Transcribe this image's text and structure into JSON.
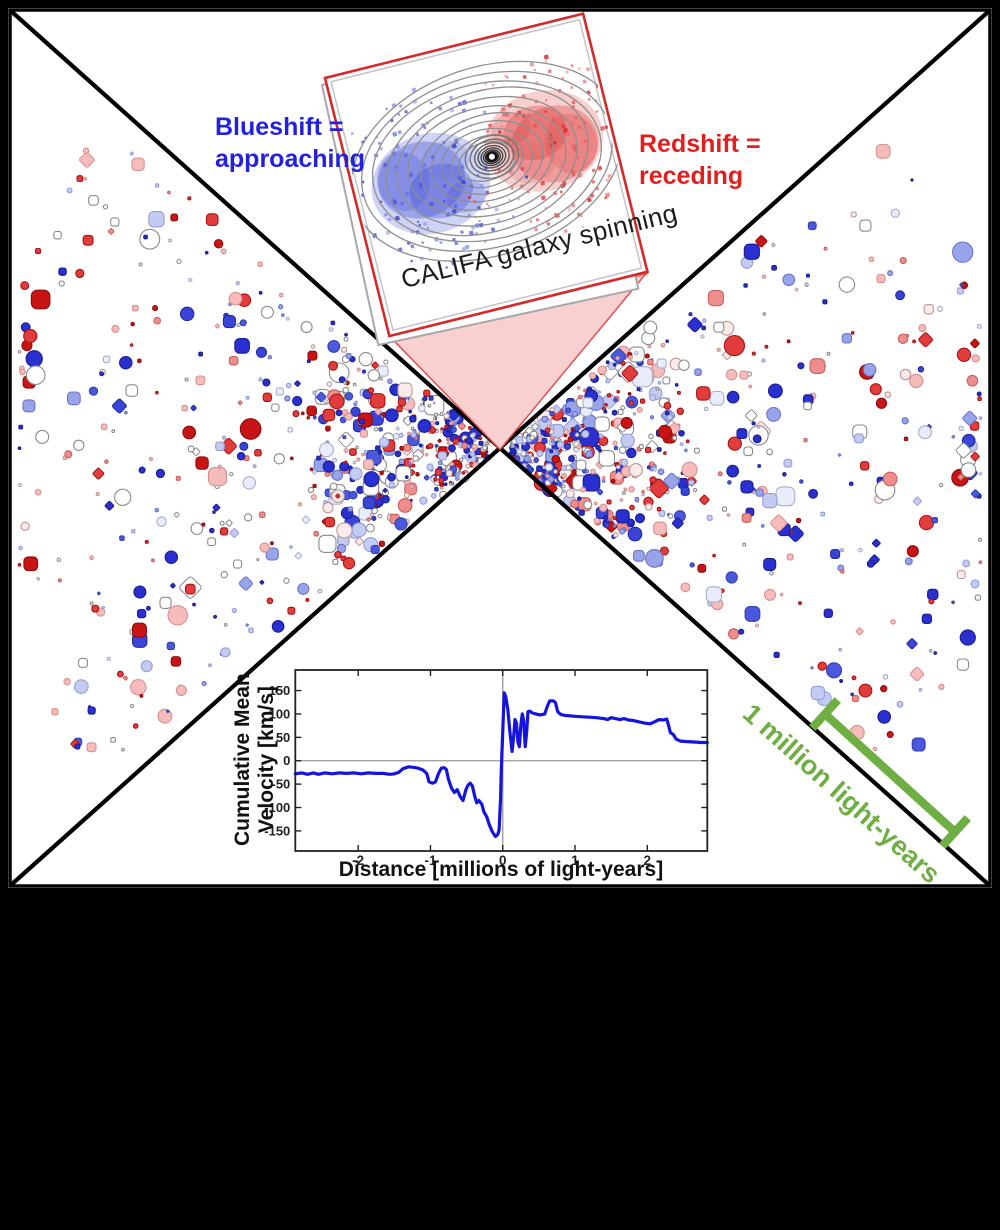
{
  "figure": {
    "background": "#000000",
    "panel_background": "#ffffff",
    "panel_border_color": "#000000",
    "diagonal_color": "#000000"
  },
  "labels": {
    "blueshift_line1": "Blueshift =",
    "blueshift_line2": "approaching",
    "blueshift_color": "#2222dd",
    "redshift_line1": "Redshift =",
    "redshift_line2": "receding",
    "redshift_color": "#e01f1f",
    "inset_caption": "CALIFA galaxy spinning",
    "scalebar_label": "1 million light-years",
    "scalebar_color": "#6fae43"
  },
  "inset": {
    "caption": "CALIFA galaxy spinning",
    "border_color": "#d42a2a",
    "blue_side": "left",
    "red_side": "right",
    "callout_fill": "#f8d0d0",
    "callout_stroke": "#e05050"
  },
  "chart_data": [
    {
      "type": "scatter",
      "title": "",
      "description": "Sky map of survey galaxies in two cones meeting at the observer; marker color encodes line-of-sight spin velocity (blue = approaching, red = receding), pale/white = small shift",
      "legend": [
        "Blueshift = approaching",
        "Redshift = receding"
      ],
      "scale_bar_label": "1 million light-years",
      "seed": 20250301,
      "counts": {
        "per_side": 560,
        "center_extra": 80
      },
      "marker_shapes": [
        "circle",
        "rounded-square",
        "diamond"
      ],
      "marker_palette": [
        {
          "fill": "#2a2fd0",
          "stroke": "#1a1f90",
          "w": 0.15
        },
        {
          "fill": "#4a58dd",
          "stroke": "#3340b0",
          "w": 0.05
        },
        {
          "fill": "#98a4ea",
          "stroke": "#6a74c8",
          "w": 0.07
        },
        {
          "fill": "#c3cbf3",
          "stroke": "#959ed6",
          "w": 0.09
        },
        {
          "fill": "#e9ecfa",
          "stroke": "#a9aec9",
          "w": 0.05
        },
        {
          "fill": "#ffffff",
          "stroke": "#8a8a8a",
          "w": 0.17
        },
        {
          "fill": "#fbeaea",
          "stroke": "#bb9898",
          "w": 0.04
        },
        {
          "fill": "#f6bcbc",
          "stroke": "#d68f8f",
          "w": 0.1
        },
        {
          "fill": "#ef8d8d",
          "stroke": "#c95f5f",
          "w": 0.05
        },
        {
          "fill": "#e23c3c",
          "stroke": "#a81414",
          "w": 0.12
        },
        {
          "fill": "#c81414",
          "stroke": "#8d0d0d",
          "w": 0.06
        },
        {
          "fill": "#3a44d6",
          "stroke": "#232a9c",
          "w": 0.05
        }
      ]
    },
    {
      "type": "line",
      "title": "",
      "xlabel": "Distance [millions of light-years]",
      "ylabel": "Cumulative Mean Velocity [km/s]",
      "ylabel_lines": [
        "Cumulative Mean",
        "Velocity [km/s]"
      ],
      "xlim": [
        -2.87,
        2.83
      ],
      "ylim": [
        -193,
        194
      ],
      "xticks": [
        -2,
        -1,
        0,
        1,
        2
      ],
      "yticks": [
        150,
        100,
        50,
        0,
        -50,
        -100,
        -150
      ],
      "grid": false,
      "zero_lines": true,
      "line_color": "#1414dd",
      "series": [
        {
          "name": "Cumulative mean velocity",
          "points": [
            [
              -2.87,
              -28
            ],
            [
              -2.78,
              -26
            ],
            [
              -2.7,
              -29
            ],
            [
              -2.62,
              -26
            ],
            [
              -2.55,
              -29
            ],
            [
              -2.46,
              -26
            ],
            [
              -2.36,
              -28
            ],
            [
              -2.26,
              -26
            ],
            [
              -2.16,
              -27
            ],
            [
              -2.06,
              -26
            ],
            [
              -1.96,
              -28
            ],
            [
              -1.86,
              -26
            ],
            [
              -1.76,
              -27
            ],
            [
              -1.66,
              -27
            ],
            [
              -1.56,
              -29
            ],
            [
              -1.5,
              -28
            ],
            [
              -1.44,
              -25
            ],
            [
              -1.38,
              -17
            ],
            [
              -1.3,
              -13
            ],
            [
              -1.24,
              -14
            ],
            [
              -1.17,
              -16
            ],
            [
              -1.1,
              -20
            ],
            [
              -1.05,
              -28
            ],
            [
              -1.02,
              -45
            ],
            [
              -0.97,
              -48
            ],
            [
              -0.93,
              -45
            ],
            [
              -0.89,
              -28
            ],
            [
              -0.85,
              -16
            ],
            [
              -0.81,
              -15
            ],
            [
              -0.78,
              -19
            ],
            [
              -0.75,
              -40
            ],
            [
              -0.71,
              -58
            ],
            [
              -0.67,
              -68
            ],
            [
              -0.63,
              -62
            ],
            [
              -0.59,
              -76
            ],
            [
              -0.55,
              -85
            ],
            [
              -0.51,
              -62
            ],
            [
              -0.48,
              -52
            ],
            [
              -0.45,
              -48
            ],
            [
              -0.42,
              -54
            ],
            [
              -0.39,
              -75
            ],
            [
              -0.36,
              -90
            ],
            [
              -0.33,
              -85
            ],
            [
              -0.29,
              -93
            ],
            [
              -0.26,
              -110
            ],
            [
              -0.22,
              -120
            ],
            [
              -0.19,
              -135
            ],
            [
              -0.15,
              -150
            ],
            [
              -0.12,
              -158
            ],
            [
              -0.1,
              -162
            ],
            [
              -0.07,
              -158
            ],
            [
              -0.05,
              -148
            ],
            [
              -0.03,
              -80
            ],
            [
              -0.02,
              -20
            ],
            [
              0.0,
              60
            ],
            [
              0.02,
              145
            ],
            [
              0.04,
              138
            ],
            [
              0.07,
              110
            ],
            [
              0.1,
              60
            ],
            [
              0.13,
              20
            ],
            [
              0.15,
              50
            ],
            [
              0.17,
              88
            ],
            [
              0.19,
              80
            ],
            [
              0.21,
              40
            ],
            [
              0.23,
              30
            ],
            [
              0.25,
              75
            ],
            [
              0.27,
              100
            ],
            [
              0.29,
              85
            ],
            [
              0.31,
              30
            ],
            [
              0.33,
              60
            ],
            [
              0.35,
              105
            ],
            [
              0.38,
              106
            ],
            [
              0.41,
              102
            ],
            [
              0.46,
              100
            ],
            [
              0.52,
              98
            ],
            [
              0.58,
              100
            ],
            [
              0.62,
              118
            ],
            [
              0.65,
              128
            ],
            [
              0.7,
              128
            ],
            [
              0.73,
              124
            ],
            [
              0.76,
              105
            ],
            [
              0.8,
              99
            ],
            [
              0.86,
              97
            ],
            [
              0.93,
              96
            ],
            [
              1.0,
              95
            ],
            [
              1.1,
              94
            ],
            [
              1.2,
              93
            ],
            [
              1.3,
              92
            ],
            [
              1.4,
              90
            ],
            [
              1.45,
              88
            ],
            [
              1.5,
              92
            ],
            [
              1.56,
              90
            ],
            [
              1.62,
              88
            ],
            [
              1.68,
              90
            ],
            [
              1.74,
              87
            ],
            [
              1.8,
              86
            ],
            [
              1.86,
              84
            ],
            [
              1.92,
              82
            ],
            [
              1.98,
              80
            ],
            [
              2.04,
              79
            ],
            [
              2.1,
              83
            ],
            [
              2.16,
              88
            ],
            [
              2.22,
              87
            ],
            [
              2.27,
              89
            ],
            [
              2.3,
              72
            ],
            [
              2.32,
              60
            ],
            [
              2.36,
              56
            ],
            [
              2.4,
              46
            ],
            [
              2.46,
              42
            ],
            [
              2.55,
              41
            ],
            [
              2.65,
              40
            ],
            [
              2.75,
              39
            ],
            [
              2.83,
              39
            ]
          ]
        }
      ]
    }
  ]
}
